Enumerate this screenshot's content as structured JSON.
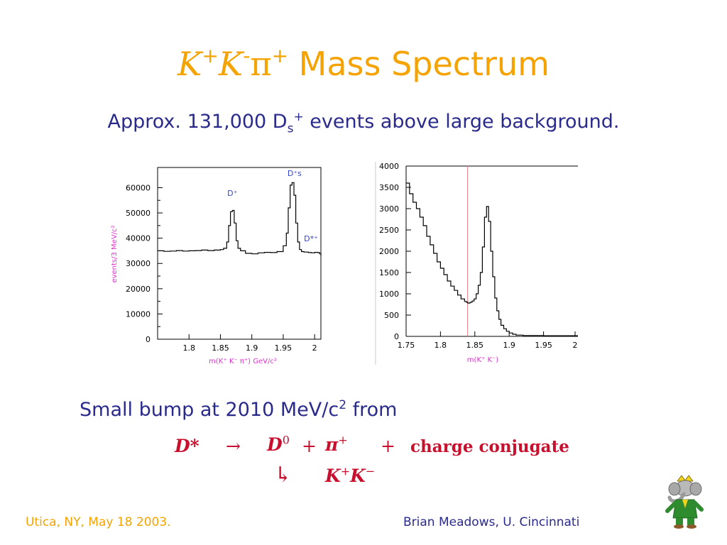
{
  "title": {
    "sym1": "K",
    "sup1": "+",
    "sym2": "K",
    "sup2": "-",
    "sym3": "π",
    "sup3": "+",
    "text": "Mass Spectrum"
  },
  "subtitle": {
    "pre": "Approx. 131,000 D",
    "sub": "s",
    "sup": "+",
    "post": " events above large background."
  },
  "chart_data": [
    {
      "type": "line",
      "xlabel": "m(K⁺ K⁻ π⁺) GeV/c²",
      "ylabel": "events/3 MeV/c²",
      "xlim": [
        1.75,
        2.01
      ],
      "ylim": [
        0,
        68000
      ],
      "xticks": [
        "1.8",
        "1.85",
        "1.9",
        "1.95",
        "2"
      ],
      "yticks": [
        "0",
        "10000",
        "20000",
        "30000",
        "40000",
        "50000",
        "60000"
      ],
      "annotations": [
        {
          "text": "D⁺",
          "x": 1.869
        },
        {
          "text": "D⁺s",
          "x": 1.968
        },
        {
          "text": "D*⁺",
          "x": 2.01
        }
      ],
      "x": [
        1.75,
        1.76,
        1.77,
        1.78,
        1.79,
        1.8,
        1.81,
        1.82,
        1.83,
        1.84,
        1.85,
        1.855,
        1.86,
        1.863,
        1.866,
        1.869,
        1.872,
        1.875,
        1.878,
        1.882,
        1.89,
        1.9,
        1.91,
        1.92,
        1.93,
        1.94,
        1.95,
        1.955,
        1.958,
        1.961,
        1.964,
        1.967,
        1.97,
        1.973,
        1.976,
        1.979,
        1.983,
        1.99,
        1.995,
        2.0,
        2.005,
        2.008,
        2.01
      ],
      "y": [
        35000,
        34800,
        34900,
        35100,
        34900,
        35000,
        35100,
        35300,
        35100,
        35300,
        35500,
        36000,
        38500,
        45000,
        50500,
        51000,
        46000,
        39000,
        36000,
        35000,
        34000,
        33800,
        34200,
        34400,
        34300,
        34700,
        37000,
        42000,
        52000,
        61000,
        62000,
        57000,
        46000,
        38500,
        35500,
        34700,
        34500,
        34300,
        34200,
        34400,
        34300,
        33800,
        33000
      ]
    },
    {
      "type": "line",
      "xlabel": "m(K⁺ K⁻)",
      "xlim": [
        1.75,
        2.0
      ],
      "ylim": [
        0,
        4000
      ],
      "xticks": [
        "1.75",
        "1.8",
        "1.85",
        "1.9",
        "1.95",
        "2"
      ],
      "yticks": [
        "0",
        "500",
        "1000",
        "1500",
        "2000",
        "2500",
        "3000",
        "3500",
        "4000"
      ],
      "reference_line_x": 1.8395,
      "x": [
        1.75,
        1.755,
        1.76,
        1.765,
        1.77,
        1.775,
        1.78,
        1.785,
        1.79,
        1.795,
        1.8,
        1.805,
        1.81,
        1.815,
        1.82,
        1.825,
        1.83,
        1.835,
        1.838,
        1.84,
        1.843,
        1.846,
        1.849,
        1.852,
        1.855,
        1.858,
        1.861,
        1.864,
        1.867,
        1.87,
        1.873,
        1.876,
        1.879,
        1.882,
        1.885,
        1.888,
        1.892,
        1.896,
        1.9,
        1.905,
        1.91,
        1.92,
        1.95,
        2.0
      ],
      "y": [
        3600,
        3350,
        3150,
        3000,
        2800,
        2600,
        2350,
        2150,
        1950,
        1750,
        1600,
        1450,
        1300,
        1180,
        1080,
        970,
        880,
        820,
        800,
        780,
        800,
        830,
        880,
        1000,
        1200,
        1500,
        2100,
        2800,
        3050,
        2700,
        2000,
        1400,
        900,
        600,
        400,
        260,
        180,
        120,
        80,
        50,
        30,
        20,
        15,
        15
      ]
    }
  ],
  "bump": {
    "pre": "Small bump at 2010 MeV/c",
    "sup": "2",
    "post": " from"
  },
  "equation": {
    "dstar": "D*",
    "arrow": "→",
    "d0": "D",
    "d0_sup": "0",
    "plus": "+",
    "pi": "π",
    "pi_sup": "+",
    "plus2": "+",
    "cc": "charge conjugate",
    "hook": "↳",
    "k1": "K",
    "k1_sup": "+",
    "k2": "K",
    "k2_sup": "−"
  },
  "footer": {
    "left": "Utica, NY, May 18 2003.",
    "right": "Brian Meadows, U. Cincinnati"
  },
  "colors": {
    "title": "#f5a300",
    "text": "#2a2a8c",
    "equation": "#c8102e",
    "axis_label": "#e22fd0",
    "annotation": "#3344cc"
  }
}
